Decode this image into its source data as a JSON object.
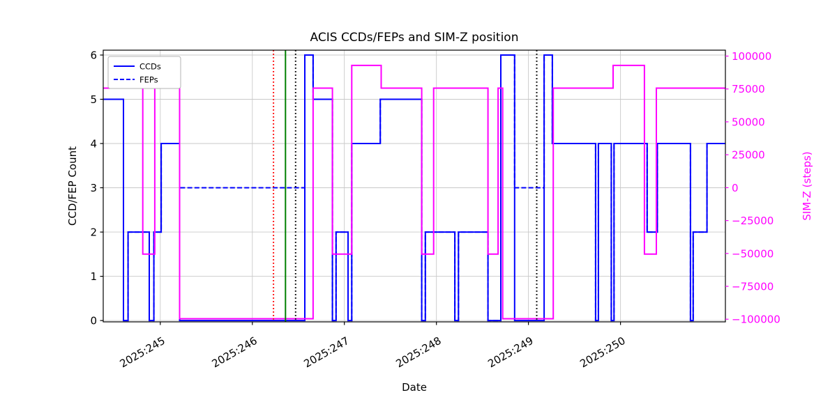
{
  "chart_data": {
    "type": "line",
    "subtype": "step-post",
    "title": "ACIS CCDs/FEPs and SIM-Z position",
    "xlabel": "Date",
    "ylabel": "CCD/FEP Count",
    "ylabel_right": "SIM-Z (steps)",
    "grid": true,
    "xlim": [
      244.38,
      251.14
    ],
    "ylim_left": [
      -0.03,
      6.11
    ],
    "ylim_right": [
      -102000,
      104500
    ],
    "x_ticks": [
      {
        "v": 245,
        "label": "2025:245"
      },
      {
        "v": 246,
        "label": "2025:246"
      },
      {
        "v": 247,
        "label": "2025:247"
      },
      {
        "v": 248,
        "label": "2025:248"
      },
      {
        "v": 249,
        "label": "2025:249"
      },
      {
        "v": 250,
        "label": "2025:250"
      }
    ],
    "y_ticks_left": [
      {
        "v": 0,
        "label": "0"
      },
      {
        "v": 1,
        "label": "1"
      },
      {
        "v": 2,
        "label": "2"
      },
      {
        "v": 3,
        "label": "3"
      },
      {
        "v": 4,
        "label": "4"
      },
      {
        "v": 5,
        "label": "5"
      },
      {
        "v": 6,
        "label": "6"
      }
    ],
    "y_ticks_right": [
      {
        "v": 100000,
        "label": "100000"
      },
      {
        "v": 75000,
        "label": "75000"
      },
      {
        "v": 50000,
        "label": "50000"
      },
      {
        "v": 25000,
        "label": "25000"
      },
      {
        "v": 0,
        "label": "0"
      },
      {
        "v": -25000,
        "label": "−25000"
      },
      {
        "v": -50000,
        "label": "−50000"
      },
      {
        "v": -75000,
        "label": "−75000"
      },
      {
        "v": -100000,
        "label": "−100000"
      }
    ],
    "colors": {
      "ccds": "#0000ff",
      "feps": "#0000ff",
      "simz": "#ff00ff",
      "grid": "#c9c9c9",
      "axis": "#000000"
    },
    "legend": {
      "position": "upper-left",
      "color": "#0000ff",
      "entries": [
        {
          "label": "CCDs",
          "dash": "solid"
        },
        {
          "label": "FEPs",
          "dash": "dashed"
        }
      ]
    },
    "series": [
      {
        "name": "CCDs",
        "axis": "left",
        "color": "#0000ff",
        "dash": "solid",
        "step": [
          [
            244.38,
            5
          ],
          [
            244.6,
            0
          ],
          [
            244.65,
            2
          ],
          [
            244.88,
            0
          ],
          [
            244.93,
            2
          ],
          [
            245.01,
            4
          ],
          [
            245.21,
            0
          ],
          [
            246.57,
            6
          ],
          [
            246.66,
            5
          ],
          [
            246.87,
            0
          ],
          [
            246.91,
            2
          ],
          [
            247.04,
            0
          ],
          [
            247.08,
            4
          ],
          [
            247.39,
            5
          ],
          [
            247.84,
            0
          ],
          [
            247.88,
            2
          ],
          [
            248.2,
            0
          ],
          [
            248.24,
            2
          ],
          [
            248.56,
            0
          ],
          [
            248.7,
            6
          ],
          [
            248.85,
            0
          ],
          [
            249.17,
            6
          ],
          [
            249.26,
            4
          ],
          [
            249.73,
            0
          ],
          [
            249.76,
            4
          ],
          [
            249.9,
            0
          ],
          [
            249.93,
            4
          ],
          [
            250.29,
            2
          ],
          [
            250.4,
            4
          ],
          [
            250.76,
            0
          ],
          [
            250.79,
            2
          ],
          [
            250.94,
            4
          ]
        ]
      },
      {
        "name": "FEPs",
        "axis": "left",
        "color": "#0000ff",
        "dash": "dashed",
        "step": [
          [
            244.38,
            5
          ],
          [
            244.6,
            0
          ],
          [
            244.65,
            2
          ],
          [
            244.88,
            0
          ],
          [
            244.93,
            2
          ],
          [
            245.01,
            4
          ],
          [
            245.21,
            3
          ],
          [
            246.57,
            6
          ],
          [
            246.66,
            5
          ],
          [
            246.87,
            0
          ],
          [
            246.91,
            2
          ],
          [
            247.04,
            0
          ],
          [
            247.08,
            4
          ],
          [
            247.39,
            5
          ],
          [
            247.84,
            0
          ],
          [
            247.88,
            2
          ],
          [
            248.2,
            0
          ],
          [
            248.24,
            2
          ],
          [
            248.56,
            0
          ],
          [
            248.7,
            6
          ],
          [
            248.85,
            3
          ],
          [
            249.17,
            6
          ],
          [
            249.26,
            4
          ],
          [
            249.73,
            0
          ],
          [
            249.76,
            4
          ],
          [
            249.9,
            0
          ],
          [
            249.93,
            4
          ],
          [
            250.29,
            2
          ],
          [
            250.4,
            4
          ],
          [
            250.76,
            0
          ],
          [
            250.79,
            2
          ],
          [
            250.94,
            4
          ]
        ]
      },
      {
        "name": "SIM-Z",
        "axis": "right",
        "color": "#ff00ff",
        "dash": "solid",
        "step": [
          [
            244.38,
            75624
          ],
          [
            244.81,
            -50505
          ],
          [
            244.94,
            92904
          ],
          [
            245.21,
            -99612
          ],
          [
            246.66,
            75624
          ],
          [
            246.87,
            -50505
          ],
          [
            247.08,
            92904
          ],
          [
            247.4,
            75624
          ],
          [
            247.84,
            -50505
          ],
          [
            247.97,
            75624
          ],
          [
            248.56,
            -50505
          ],
          [
            248.67,
            75624
          ],
          [
            248.72,
            -99612
          ],
          [
            249.27,
            75624
          ],
          [
            249.92,
            92904
          ],
          [
            250.26,
            -50505
          ],
          [
            250.39,
            75624
          ]
        ]
      }
    ],
    "vlines": [
      {
        "x": 246.23,
        "color": "#ff0000",
        "dash": "dotted",
        "name": "red-dotted"
      },
      {
        "x": 246.36,
        "color": "#008000",
        "dash": "solid",
        "name": "green-solid"
      },
      {
        "x": 246.47,
        "color": "#000000",
        "dash": "dotted",
        "name": "black-dotted-1"
      },
      {
        "x": 249.09,
        "color": "#000000",
        "dash": "dotted",
        "name": "black-dotted-2"
      }
    ]
  }
}
